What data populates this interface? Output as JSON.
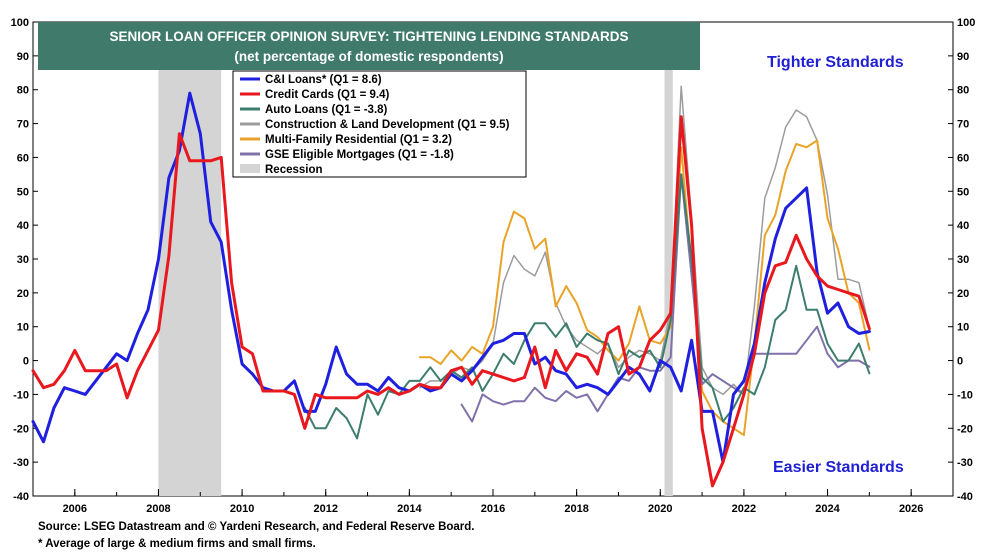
{
  "chart_data": {
    "type": "line",
    "title": "SENIOR LOAN OFFICER OPINION SURVEY: TIGHTENING LENDING STANDARDS",
    "subtitle": "(net percentage of domestic respondents)",
    "ylim": [
      -40,
      100
    ],
    "yticks": [
      -40,
      -30,
      -20,
      -10,
      0,
      10,
      20,
      30,
      40,
      50,
      60,
      70,
      80,
      90,
      100
    ],
    "xlim": [
      2005,
      2027
    ],
    "xticks": [
      2006,
      2008,
      2010,
      2012,
      2014,
      2016,
      2018,
      2020,
      2022,
      2024,
      2026
    ],
    "legend_position": "top-left",
    "grid": false,
    "annotations": [
      {
        "text": "Tighter Standards",
        "color": "#1f1fd6"
      },
      {
        "text": "Easier Standards",
        "color": "#1f1fd6"
      }
    ],
    "recessions": [
      {
        "label": "Recession",
        "start": 2008.0,
        "end": 2009.5
      },
      {
        "label": "",
        "start": 2020.1,
        "end": 2020.3
      }
    ],
    "series": [
      {
        "name": "C&I Loans* (Q1 = 8.6)",
        "color": "#1f1fe0",
        "width": 3,
        "x": [
          2005.0,
          2005.25,
          2005.5,
          2005.75,
          2006.0,
          2006.25,
          2006.5,
          2006.75,
          2007.0,
          2007.25,
          2007.5,
          2007.75,
          2008.0,
          2008.25,
          2008.5,
          2008.75,
          2009.0,
          2009.25,
          2009.5,
          2009.75,
          2010.0,
          2010.25,
          2010.5,
          2010.75,
          2011.0,
          2011.25,
          2011.5,
          2011.75,
          2012.0,
          2012.25,
          2012.5,
          2012.75,
          2013.0,
          2013.25,
          2013.5,
          2013.75,
          2014.0,
          2014.25,
          2014.5,
          2014.75,
          2015.0,
          2015.25,
          2015.5,
          2015.75,
          2016.0,
          2016.25,
          2016.5,
          2016.75,
          2017.0,
          2017.25,
          2017.5,
          2017.75,
          2018.0,
          2018.25,
          2018.5,
          2018.75,
          2019.0,
          2019.25,
          2019.5,
          2019.75,
          2020.0,
          2020.25,
          2020.5,
          2020.75,
          2021.0,
          2021.25,
          2021.5,
          2021.75,
          2022.0,
          2022.25,
          2022.5,
          2022.75,
          2023.0,
          2023.25,
          2023.5,
          2023.75,
          2024.0,
          2024.25,
          2024.5,
          2024.75,
          2025.0
        ],
        "values": [
          -18,
          -24,
          -14,
          -8,
          -9,
          -10,
          -6,
          -2,
          2,
          0,
          8,
          15,
          30,
          54,
          62,
          79,
          67,
          41,
          35,
          15,
          -1,
          -4,
          -8,
          -9,
          -9,
          -6,
          -15,
          -15,
          -7,
          4,
          -4,
          -7,
          -7,
          -9,
          -5,
          -8,
          -9,
          -7,
          -9,
          -8,
          -4,
          -6,
          -3,
          1,
          5,
          6,
          8,
          8,
          -1,
          1,
          -3,
          -4,
          -8,
          -7,
          -8,
          -10,
          -6,
          -2,
          -4,
          -9,
          0,
          -2,
          -9,
          6,
          -15,
          -15,
          -30,
          -10,
          -6,
          5,
          23,
          36,
          45,
          48,
          51,
          26,
          14,
          17,
          10,
          8,
          8.6
        ]
      },
      {
        "name": "Credit Cards (Q1 = 9.4)",
        "color": "#e8181e",
        "width": 3,
        "x": [
          2005.0,
          2005.25,
          2005.5,
          2005.75,
          2006.0,
          2006.25,
          2006.5,
          2006.75,
          2007.0,
          2007.25,
          2007.5,
          2007.75,
          2008.0,
          2008.25,
          2008.5,
          2008.75,
          2009.0,
          2009.25,
          2009.5,
          2009.75,
          2010.0,
          2010.25,
          2010.5,
          2010.75,
          2011.0,
          2011.25,
          2011.5,
          2011.75,
          2012.0,
          2012.25,
          2012.5,
          2012.75,
          2013.0,
          2013.25,
          2013.5,
          2013.75,
          2014.0,
          2014.25,
          2014.5,
          2014.75,
          2015.0,
          2015.25,
          2015.5,
          2015.75,
          2016.0,
          2016.25,
          2016.5,
          2016.75,
          2017.0,
          2017.25,
          2017.5,
          2017.75,
          2018.0,
          2018.25,
          2018.5,
          2018.75,
          2019.0,
          2019.25,
          2019.5,
          2019.75,
          2020.0,
          2020.25,
          2020.5,
          2020.75,
          2021.0,
          2021.25,
          2021.5,
          2021.75,
          2022.0,
          2022.25,
          2022.5,
          2022.75,
          2023.0,
          2023.25,
          2023.5,
          2023.75,
          2024.0,
          2024.25,
          2024.5,
          2024.75,
          2025.0
        ],
        "values": [
          -3,
          -8,
          -7,
          -3,
          3,
          -3,
          -3,
          -3,
          -1,
          -11,
          -3,
          3,
          9,
          31,
          67,
          59,
          59,
          59,
          60,
          23,
          4,
          2,
          -9,
          -9,
          -9,
          -10,
          -20,
          -10,
          -11,
          -11,
          -11,
          -11,
          -9,
          -10,
          -8,
          -10,
          -9,
          -7,
          -8,
          -8,
          -3,
          -2,
          -7,
          -3,
          -4,
          -5,
          -6,
          -5,
          4,
          -8,
          3,
          -3,
          2,
          1,
          -4,
          8,
          10,
          -4,
          -2,
          6,
          9,
          14,
          72,
          40,
          -20,
          -37,
          -30,
          -20,
          -10,
          2,
          20,
          28,
          29,
          37,
          30,
          25,
          22,
          21,
          20,
          19,
          9.4
        ]
      },
      {
        "name": "Auto Loans (Q1 = -3.8)",
        "color": "#3d7d6d",
        "width": 2,
        "x": [
          2011.5,
          2011.75,
          2012.0,
          2012.25,
          2012.5,
          2012.75,
          2013.0,
          2013.25,
          2013.5,
          2013.75,
          2014.0,
          2014.25,
          2014.5,
          2014.75,
          2015.0,
          2015.25,
          2015.5,
          2015.75,
          2016.0,
          2016.25,
          2016.5,
          2016.75,
          2017.0,
          2017.25,
          2017.5,
          2017.75,
          2018.0,
          2018.25,
          2018.5,
          2018.75,
          2019.0,
          2019.25,
          2019.5,
          2019.75,
          2020.0,
          2020.25,
          2020.5,
          2020.75,
          2021.0,
          2021.25,
          2021.5,
          2021.75,
          2022.0,
          2022.25,
          2022.5,
          2022.75,
          2023.0,
          2023.25,
          2023.5,
          2023.75,
          2024.0,
          2024.25,
          2024.5,
          2024.75,
          2025.0
        ],
        "values": [
          -14,
          -20,
          -20,
          -14,
          -17,
          -23,
          -10,
          -16,
          -9,
          -10,
          -6,
          -6,
          -2,
          -6,
          -3,
          -5,
          -2,
          -9,
          -4,
          2,
          -1,
          6,
          11,
          11,
          7,
          11,
          4,
          8,
          6,
          5,
          -4,
          3,
          1,
          3,
          -2,
          12,
          55,
          30,
          -5,
          -8,
          -18,
          -14,
          -8,
          -10,
          -2,
          12,
          15,
          28,
          15,
          15,
          5,
          0,
          0,
          5,
          -3.8
        ]
      },
      {
        "name": "Construction & Land Development (Q1 = 9.5)",
        "color": "#9c9c9c",
        "width": 1.5,
        "x": [
          2014.25,
          2014.5,
          2014.75,
          2015.0,
          2015.25,
          2015.5,
          2015.75,
          2016.0,
          2016.25,
          2016.5,
          2016.75,
          2017.0,
          2017.25,
          2017.5,
          2017.75,
          2018.0,
          2018.25,
          2018.5,
          2018.75,
          2019.0,
          2019.25,
          2019.5,
          2019.75,
          2020.0,
          2020.25,
          2020.5,
          2020.75,
          2021.0,
          2021.25,
          2021.5,
          2021.75,
          2022.0,
          2022.25,
          2022.5,
          2022.75,
          2023.0,
          2023.25,
          2023.5,
          2023.75,
          2024.0,
          2024.25,
          2024.5,
          2024.75,
          2025.0
        ],
        "values": [
          -8,
          -6,
          -6,
          -4,
          -2,
          -3,
          0,
          5,
          23,
          31,
          27,
          25,
          32,
          17,
          10,
          6,
          4,
          2,
          5,
          -2,
          1,
          3,
          2,
          0,
          15,
          81,
          42,
          -2,
          -8,
          -10,
          -7,
          -10,
          16,
          48,
          57,
          69,
          74,
          72,
          65,
          49,
          24,
          24,
          23,
          9.5
        ]
      },
      {
        "name": "Multi-Family Residential (Q1 = 3.2)",
        "color": "#e8a328",
        "width": 2,
        "x": [
          2014.25,
          2014.5,
          2014.75,
          2015.0,
          2015.25,
          2015.5,
          2015.75,
          2016.0,
          2016.25,
          2016.5,
          2016.75,
          2017.0,
          2017.25,
          2017.5,
          2017.75,
          2018.0,
          2018.25,
          2018.5,
          2018.75,
          2019.0,
          2019.25,
          2019.5,
          2019.75,
          2020.0,
          2020.25,
          2020.5,
          2020.75,
          2021.0,
          2021.25,
          2021.5,
          2021.75,
          2022.0,
          2022.25,
          2022.5,
          2022.75,
          2023.0,
          2023.25,
          2023.5,
          2023.75,
          2024.0,
          2024.25,
          2024.5,
          2024.75,
          2025.0
        ],
        "values": [
          1,
          1,
          -1,
          3,
          0,
          4,
          2,
          10,
          35,
          44,
          42,
          33,
          36,
          16,
          22,
          17,
          9,
          7,
          3,
          0,
          5,
          16,
          6,
          5,
          10,
          63,
          27,
          -9,
          -15,
          -18,
          -20,
          -22,
          5,
          37,
          43,
          56,
          64,
          63,
          65,
          42,
          33,
          20,
          17,
          3.2
        ]
      },
      {
        "name": "GSE Eligible Mortgages (Q1 = -1.8)",
        "color": "#8071ab",
        "width": 2,
        "x": [
          2015.25,
          2015.5,
          2015.75,
          2016.0,
          2016.25,
          2016.5,
          2016.75,
          2017.0,
          2017.25,
          2017.5,
          2017.75,
          2018.0,
          2018.25,
          2018.5,
          2018.75,
          2019.0,
          2019.25,
          2019.5,
          2019.75,
          2020.0,
          2020.25,
          2020.5,
          2020.75,
          2021.0,
          2021.25,
          2021.5,
          2021.75,
          2022.0,
          2022.25,
          2022.5,
          2022.75,
          2023.0,
          2023.25,
          2023.5,
          2023.75,
          2024.0,
          2024.25,
          2024.5,
          2024.75,
          2025.0
        ],
        "values": [
          -13,
          -18,
          -10,
          -12,
          -13,
          -12,
          -12,
          -8,
          -11,
          -12,
          -9,
          -11,
          -10,
          -15,
          -10,
          -5,
          -6,
          -2,
          -3,
          -3,
          1,
          55,
          25,
          -7,
          -4,
          -6,
          -8,
          -10,
          2,
          2,
          2,
          2,
          2,
          6,
          10,
          2,
          -2,
          0,
          0,
          -1.8
        ]
      }
    ]
  },
  "footnotes": {
    "source": "Source: LSEG Datastream and © Yardeni Research, and Federal Reserve Board.",
    "note": "* Average of large & medium firms and small firms."
  }
}
